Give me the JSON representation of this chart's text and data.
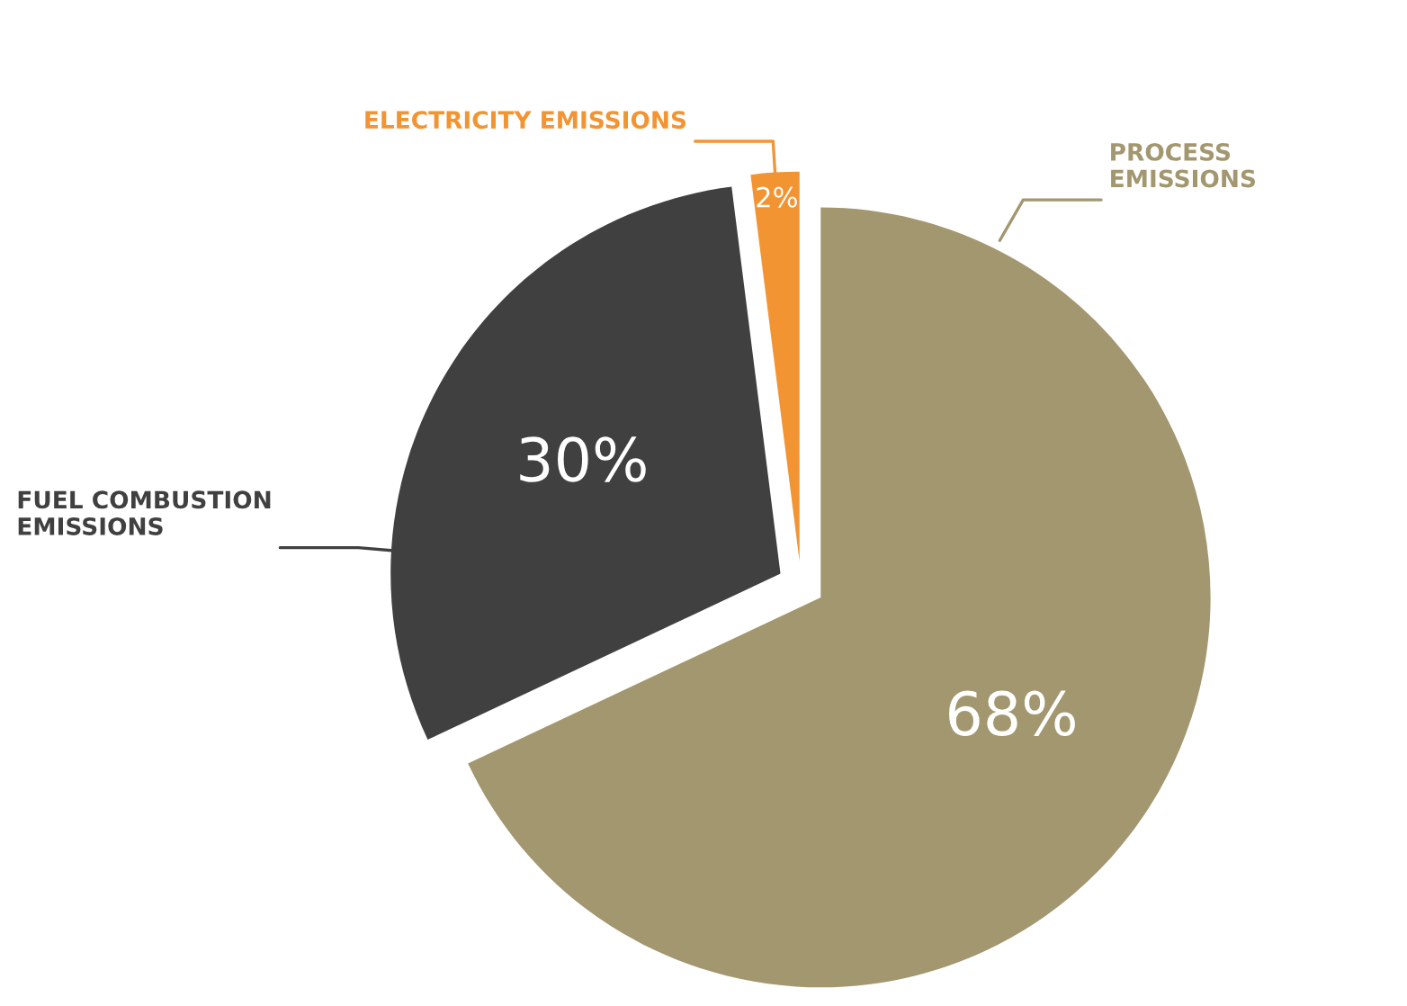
{
  "chart_data": {
    "type": "pie",
    "categories": [
      "PROCESS\nEMISSIONS",
      "FUEL COMBUSTION\nEMISSIONS",
      "ELECTRICITY EMISSIONS"
    ],
    "values": [
      68,
      30,
      2
    ],
    "value_labels": [
      "68%",
      "30%",
      "2%"
    ],
    "colors": [
      "#a39770",
      "#404041",
      "#f39433"
    ],
    "legend": false
  }
}
